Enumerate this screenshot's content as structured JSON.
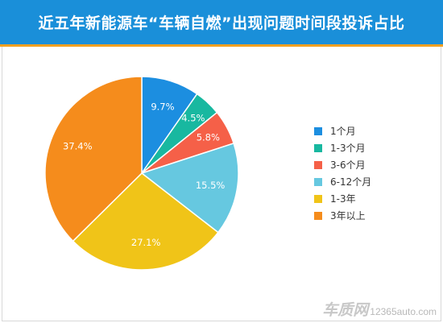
{
  "header": {
    "title": "近五年新能源车“车辆自燃”出现问题时间段投诉占比"
  },
  "chart_data": {
    "type": "pie",
    "title": "近五年新能源车“车辆自燃”出现问题时间段投诉占比",
    "legend_position": "right",
    "slices": [
      {
        "label": "1个月",
        "value": 9.7,
        "display": "9.7%",
        "color": "#1c8ee0"
      },
      {
        "label": "1-3个月",
        "value": 4.5,
        "display": "4.5%",
        "color": "#18b8a0"
      },
      {
        "label": "3-6个月",
        "value": 5.8,
        "display": "5.8%",
        "color": "#f56048"
      },
      {
        "label": "6-12个月",
        "value": 15.5,
        "display": "15.5%",
        "color": "#66c8e0"
      },
      {
        "label": "1-3年",
        "value": 27.1,
        "display": "27.1%",
        "color": "#f0c418"
      },
      {
        "label": "3年以上",
        "value": 37.4,
        "display": "37.4%",
        "color": "#f58c1c"
      }
    ]
  },
  "watermark": {
    "logo": "车质网",
    "url": "12365auto.com"
  }
}
